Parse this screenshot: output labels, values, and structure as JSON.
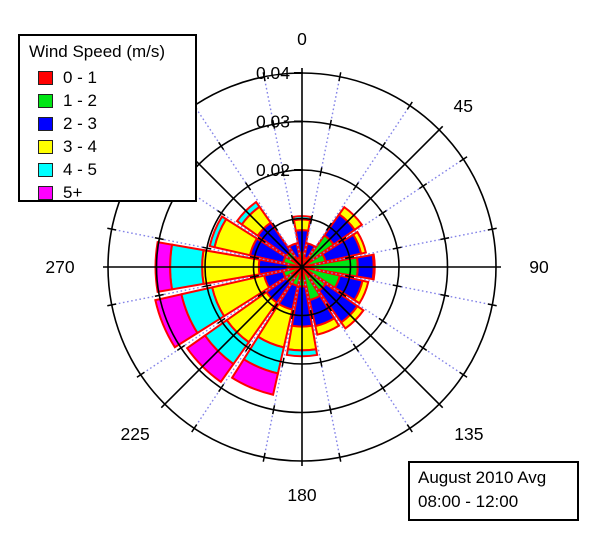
{
  "chart_data": {
    "type": "wind-rose (stacked polar bar)",
    "units": "frequency (fraction of observations)",
    "radial_axis": {
      "tick_labels": [
        "0.02",
        "0.03",
        "0.04"
      ],
      "ring_values": [
        0.01,
        0.02,
        0.03,
        0.04
      ],
      "max": 0.04
    },
    "angle_labels": [
      {
        "text": "0",
        "deg": 0
      },
      {
        "text": "45",
        "deg": 45
      },
      {
        "text": "90",
        "deg": 90
      },
      {
        "text": "135",
        "deg": 135
      },
      {
        "text": "180",
        "deg": 180
      },
      {
        "text": "225",
        "deg": 225
      },
      {
        "text": "270",
        "deg": 270
      }
    ],
    "sector_width_deg": 19.5,
    "petal_outline_color": "#ff0000",
    "bins": [
      {
        "label": "0 - 1",
        "color": "#ff0000"
      },
      {
        "label": "1 - 2",
        "color": "#00e514"
      },
      {
        "label": "2 - 3",
        "color": "#0000ff"
      },
      {
        "label": "3 - 4",
        "color": "#ffff00"
      },
      {
        "label": "4 - 5",
        "color": "#00ffff"
      },
      {
        "label": "5+",
        "color": "#ff00ff"
      }
    ],
    "directions": [
      {
        "dir": "N",
        "deg": 0.0,
        "values": [
          0.001,
          0.002,
          0.0046,
          0.0022,
          0.0007,
          0.0
        ]
      },
      {
        "dir": "NNE",
        "deg": 22.5,
        "values": [
          0.001,
          0.001,
          0.003,
          0.0,
          0.0,
          0.0
        ]
      },
      {
        "dir": "NE",
        "deg": 45.0,
        "values": [
          0.001,
          0.007,
          0.0053,
          0.0018,
          0.0,
          0.0
        ]
      },
      {
        "dir": "ENE",
        "deg": 67.5,
        "values": [
          0.001,
          0.004,
          0.0075,
          0.001,
          0.0,
          0.0
        ]
      },
      {
        "dir": "E",
        "deg": 90.0,
        "values": [
          0.001,
          0.0105,
          0.0033,
          0.0002,
          0.0,
          0.0
        ]
      },
      {
        "dir": "ESE",
        "deg": 112.5,
        "values": [
          0.001,
          0.007,
          0.0048,
          0.0012,
          0.0,
          0.0
        ]
      },
      {
        "dir": "SE",
        "deg": 135.0,
        "values": [
          0.001,
          0.005,
          0.008,
          0.0015,
          0.0,
          0.0
        ]
      },
      {
        "dir": "SSE",
        "deg": 157.5,
        "values": [
          0.001,
          0.006,
          0.0055,
          0.0018,
          0.0,
          0.0
        ]
      },
      {
        "dir": "S",
        "deg": 180.0,
        "values": [
          0.001,
          0.003,
          0.0083,
          0.0049,
          0.0012,
          0.0
        ]
      },
      {
        "dir": "SSW",
        "deg": 202.5,
        "values": [
          0.001,
          0.003,
          0.005,
          0.008,
          0.0055,
          0.0045
        ]
      },
      {
        "dir": "SW",
        "deg": 225.0,
        "values": [
          0.001,
          0.003,
          0.005,
          0.01,
          0.0055,
          0.0045
        ]
      },
      {
        "dir": "WSW",
        "deg": 247.5,
        "values": [
          0.001,
          0.003,
          0.004,
          0.011,
          0.0065,
          0.0055
        ]
      },
      {
        "dir": "W",
        "deg": 270.0,
        "values": [
          0.001,
          0.002,
          0.0059,
          0.0117,
          0.0066,
          0.003
        ]
      },
      {
        "dir": "WNW",
        "deg": 292.5,
        "values": [
          0.001,
          0.003,
          0.007,
          0.0075,
          0.001,
          0.0
        ]
      },
      {
        "dir": "NW",
        "deg": 315.0,
        "values": [
          0.001,
          0.003,
          0.0072,
          0.004,
          0.0012,
          0.0
        ]
      },
      {
        "dir": "NNW",
        "deg": 337.5,
        "values": [
          0.001,
          0.001,
          0.003,
          0.0,
          0.0,
          0.0
        ]
      }
    ],
    "grid": {
      "ring_color": "#000000",
      "main_spoke_color": "#000000",
      "main_spoke_step_deg": 45,
      "minor_spoke_color": "#8484e8",
      "minor_spoke_style": "dotted",
      "minor_spoke_offset_deg": 11.25,
      "minor_spoke_step_deg": 22.5
    }
  },
  "legend": {
    "title": "Wind Speed (m/s)",
    "items": [
      {
        "label": "0 - 1",
        "color": "#ff0000"
      },
      {
        "label": "1 - 2",
        "color": "#00e514"
      },
      {
        "label": "2 - 3",
        "color": "#0000ff"
      },
      {
        "label": "3 - 4",
        "color": "#ffff00"
      },
      {
        "label": "4 - 5",
        "color": "#00ffff"
      },
      {
        "label": "5+",
        "color": "#ff00ff"
      }
    ]
  },
  "annotation": {
    "line1": "August 2010 Avg",
    "line2": "08:00 - 12:00"
  }
}
